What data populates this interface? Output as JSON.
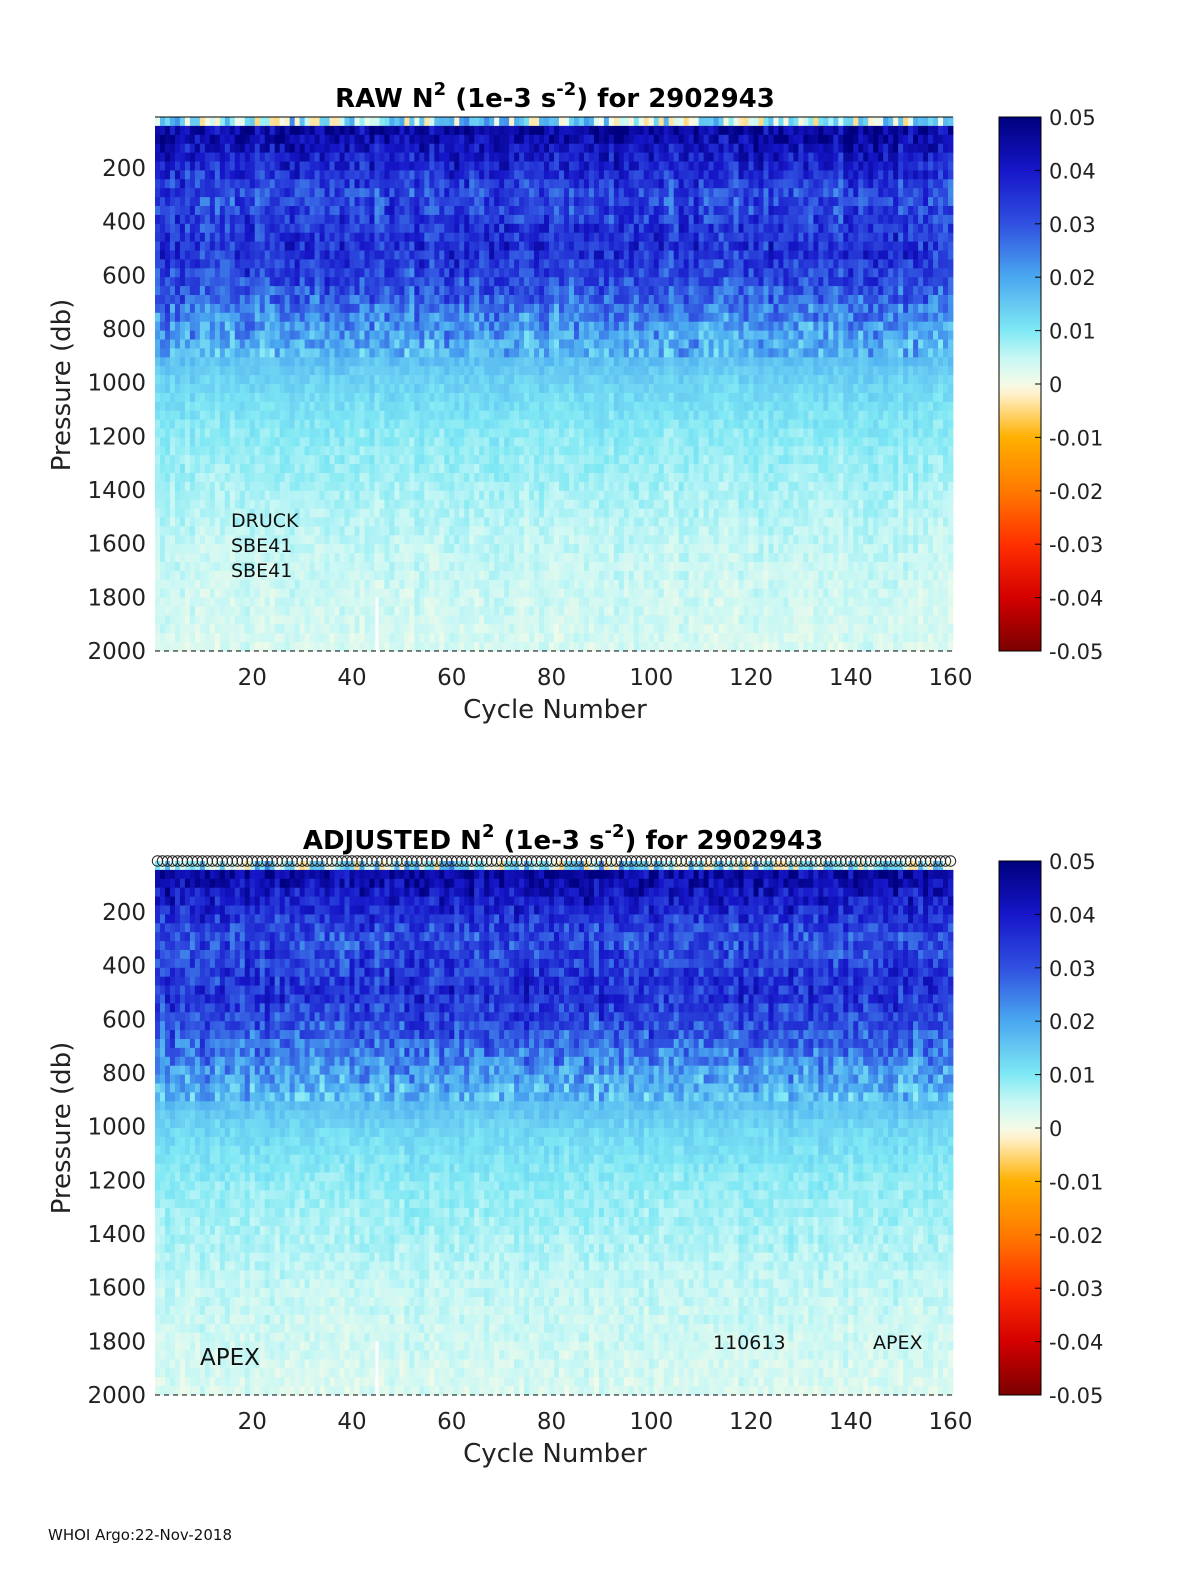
{
  "footer": "WHOI Argo:22-Nov-2018",
  "colormap": {
    "stops": [
      {
        "v": -0.05,
        "color": "#7a0000"
      },
      {
        "v": -0.04,
        "color": "#d40000"
      },
      {
        "v": -0.03,
        "color": "#ff3000"
      },
      {
        "v": -0.02,
        "color": "#ff7a00"
      },
      {
        "v": -0.01,
        "color": "#ffb000"
      },
      {
        "v": -0.002,
        "color": "#fff0c8"
      },
      {
        "v": 0.0,
        "color": "#f4fbe8"
      },
      {
        "v": 0.005,
        "color": "#c6f7f5"
      },
      {
        "v": 0.01,
        "color": "#7fe8f4"
      },
      {
        "v": 0.02,
        "color": "#4aa8f0"
      },
      {
        "v": 0.03,
        "color": "#3050e0"
      },
      {
        "v": 0.04,
        "color": "#1616c8"
      },
      {
        "v": 0.05,
        "color": "#00007f"
      }
    ]
  },
  "chart_data": [
    {
      "type": "heatmap",
      "title_pre": "RAW N",
      "title_sup1": "2",
      "title_mid": " (1e-3 s",
      "title_sup2": "-2",
      "title_post": ") for 2902943",
      "xlabel": "Cycle Number",
      "ylabel": "Pressure (db)",
      "xlim": [
        1,
        160
      ],
      "ylim": [
        2000,
        10
      ],
      "xticks": [
        "20",
        "40",
        "60",
        "80",
        "100",
        "120",
        "140",
        "160"
      ],
      "yticks": [
        "200",
        "400",
        "600",
        "800",
        "1000",
        "1200",
        "1400",
        "1600",
        "1800",
        "2000"
      ],
      "colorbar_ticks": [
        "0.05",
        "0.04",
        "0.03",
        "0.02",
        "0.01",
        "0",
        "-0.01",
        "-0.02",
        "-0.03",
        "-0.04",
        "-0.05"
      ],
      "clim": [
        -0.05,
        0.05
      ],
      "depth_profile": [
        {
          "p": 10,
          "v": 0.0
        },
        {
          "p": 60,
          "v": 0.046
        },
        {
          "p": 150,
          "v": 0.04
        },
        {
          "p": 300,
          "v": 0.031
        },
        {
          "p": 500,
          "v": 0.036
        },
        {
          "p": 650,
          "v": 0.03
        },
        {
          "p": 800,
          "v": 0.021
        },
        {
          "p": 1000,
          "v": 0.013
        },
        {
          "p": 1200,
          "v": 0.009
        },
        {
          "p": 1400,
          "v": 0.007
        },
        {
          "p": 1600,
          "v": 0.005
        },
        {
          "p": 1800,
          "v": 0.004
        },
        {
          "p": 2000,
          "v": 0.003
        }
      ],
      "gap_cycle": 45,
      "annotations": [
        "DRUCK",
        "SBE41",
        "SBE41"
      ],
      "markers": false
    },
    {
      "type": "heatmap",
      "title_pre": "ADJUSTED N",
      "title_sup1": "2",
      "title_mid": " (1e-3 s",
      "title_sup2": "-2",
      "title_post": ") for 2902943",
      "xlabel": "Cycle Number",
      "ylabel": "Pressure (db)",
      "xlim": [
        1,
        160
      ],
      "ylim": [
        2000,
        10
      ],
      "xticks": [
        "20",
        "40",
        "60",
        "80",
        "100",
        "120",
        "140",
        "160"
      ],
      "yticks": [
        "200",
        "400",
        "600",
        "800",
        "1000",
        "1200",
        "1400",
        "1600",
        "1800",
        "2000"
      ],
      "colorbar_ticks": [
        "0.05",
        "0.04",
        "0.03",
        "0.02",
        "0.01",
        "0",
        "-0.01",
        "-0.02",
        "-0.03",
        "-0.04",
        "-0.05"
      ],
      "clim": [
        -0.05,
        0.05
      ],
      "depth_profile": [
        {
          "p": 10,
          "v": 0.0
        },
        {
          "p": 60,
          "v": 0.046
        },
        {
          "p": 150,
          "v": 0.04
        },
        {
          "p": 300,
          "v": 0.031
        },
        {
          "p": 500,
          "v": 0.036
        },
        {
          "p": 650,
          "v": 0.03
        },
        {
          "p": 800,
          "v": 0.021
        },
        {
          "p": 1000,
          "v": 0.013
        },
        {
          "p": 1200,
          "v": 0.009
        },
        {
          "p": 1400,
          "v": 0.007
        },
        {
          "p": 1600,
          "v": 0.005
        },
        {
          "p": 1800,
          "v": 0.004
        },
        {
          "p": 2000,
          "v": 0.003
        }
      ],
      "gap_cycle": 45,
      "annotations": [
        "APEX",
        "110613",
        "APEX"
      ],
      "markers": true
    }
  ]
}
